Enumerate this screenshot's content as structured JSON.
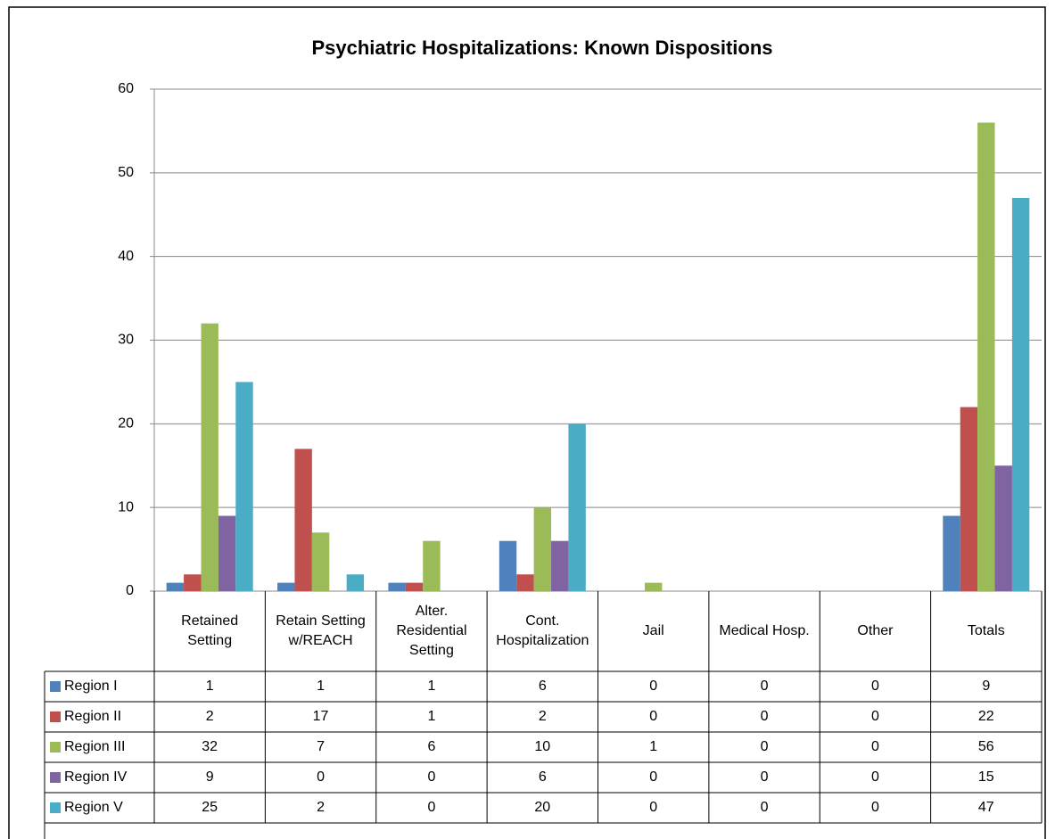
{
  "chart_data": {
    "type": "bar",
    "title": "Psychiatric Hospitalizations: Known Dispositions",
    "categories": [
      "Retained Setting",
      "Retain Setting w/REACH",
      "Alter. Residential Setting",
      "Cont. Hospitalization",
      "Jail",
      "Medical Hosp.",
      "Other",
      "Totals"
    ],
    "series": [
      {
        "name": "Region I",
        "color": "#4f81bd",
        "values": [
          1,
          1,
          1,
          6,
          0,
          0,
          0,
          9
        ]
      },
      {
        "name": "Region II",
        "color": "#c0504d",
        "values": [
          2,
          17,
          1,
          2,
          0,
          0,
          0,
          22
        ]
      },
      {
        "name": "Region III",
        "color": "#9bbb59",
        "values": [
          32,
          7,
          6,
          10,
          1,
          0,
          0,
          56
        ]
      },
      {
        "name": "Region IV",
        "color": "#8064a2",
        "values": [
          9,
          0,
          0,
          6,
          0,
          0,
          0,
          15
        ]
      },
      {
        "name": "Region V",
        "color": "#4bacc6",
        "values": [
          25,
          2,
          0,
          20,
          0,
          0,
          0,
          47
        ]
      }
    ],
    "ylim": [
      0,
      60
    ],
    "yticks": [
      0,
      10,
      20,
      30,
      40,
      50,
      60
    ],
    "grid": true
  }
}
